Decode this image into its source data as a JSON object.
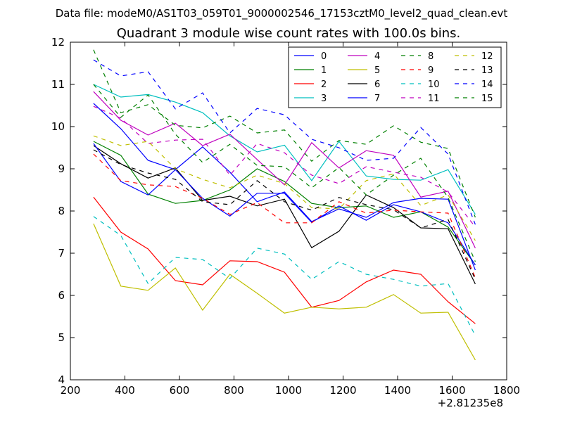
{
  "chart_data": {
    "type": "line",
    "suptitle": "Data file: modeM0/AS1T03_059T01_9000002546_17153cztM0_level2_quad_clean.evt",
    "title": "Quadrant 3 module wise count rates with 100.0s bins.",
    "xlabel": "",
    "ylabel": "",
    "x_offset_label": "+2.81235e8",
    "xlim": [
      200,
      1800
    ],
    "ylim": [
      4,
      12
    ],
    "xticks": [
      200,
      400,
      600,
      800,
      1000,
      1200,
      1400,
      1600,
      1800
    ],
    "yticks": [
      4,
      5,
      6,
      7,
      8,
      9,
      10,
      11,
      12
    ],
    "legend_position": "top-right",
    "legend_columns": 4,
    "x": [
      285,
      385,
      485,
      585,
      685,
      785,
      885,
      985,
      1085,
      1185,
      1285,
      1385,
      1485,
      1585,
      1685
    ],
    "series": [
      {
        "name": "0",
        "color": "#0000ff",
        "dash": "solid",
        "values": [
          10.55,
          9.95,
          9.2,
          8.98,
          9.52,
          8.92,
          8.22,
          8.45,
          7.75,
          8.05,
          7.85,
          8.2,
          8.3,
          8.28,
          6.6
        ]
      },
      {
        "name": "1",
        "color": "#008000",
        "dash": "solid",
        "values": [
          9.65,
          9.32,
          8.4,
          8.18,
          8.25,
          8.5,
          9.0,
          8.7,
          8.18,
          8.08,
          8.12,
          7.85,
          7.98,
          7.62,
          6.72
        ]
      },
      {
        "name": "2",
        "color": "#ff0000",
        "dash": "solid",
        "values": [
          8.33,
          7.5,
          7.1,
          6.35,
          6.25,
          6.82,
          6.8,
          6.55,
          5.72,
          5.88,
          6.32,
          6.6,
          6.5,
          5.85,
          5.33
        ]
      },
      {
        "name": "3",
        "color": "#00bfbf",
        "dash": "solid",
        "values": [
          11.0,
          10.7,
          10.76,
          10.58,
          10.33,
          9.78,
          9.4,
          9.56,
          8.72,
          9.65,
          8.83,
          8.75,
          8.73,
          8.98,
          7.92
        ]
      },
      {
        "name": "4",
        "color": "#bf00bf",
        "dash": "solid",
        "values": [
          10.83,
          10.15,
          9.8,
          10.08,
          9.55,
          9.82,
          9.22,
          8.62,
          9.62,
          9.02,
          9.43,
          9.32,
          8.33,
          8.47,
          7.12
        ]
      },
      {
        "name": "5",
        "color": "#bfbf00",
        "dash": "solid",
        "values": [
          7.7,
          6.22,
          6.12,
          6.65,
          5.65,
          6.5,
          6.05,
          5.58,
          5.72,
          5.68,
          5.72,
          6.02,
          5.58,
          5.6,
          4.47
        ]
      },
      {
        "name": "6",
        "color": "#000000",
        "dash": "solid",
        "values": [
          9.55,
          9.12,
          8.78,
          9.02,
          8.25,
          8.35,
          8.12,
          8.28,
          7.13,
          7.52,
          8.38,
          8.08,
          7.6,
          7.58,
          6.27
        ]
      },
      {
        "name": "7",
        "color": "#0000ff",
        "dash": "solid",
        "values": [
          9.6,
          8.7,
          8.38,
          8.98,
          8.3,
          7.88,
          8.42,
          8.42,
          7.73,
          8.12,
          7.78,
          8.15,
          7.98,
          7.72,
          6.72
        ]
      },
      {
        "name": "8",
        "color": "#008000",
        "dash": "dashed",
        "values": [
          11.82,
          10.33,
          10.52,
          10.03,
          9.97,
          10.25,
          9.85,
          9.92,
          9.18,
          9.67,
          9.58,
          10.02,
          9.63,
          9.48,
          7.85
        ]
      },
      {
        "name": "9",
        "color": "#ff0000",
        "dash": "dashed",
        "values": [
          9.35,
          8.72,
          8.62,
          8.58,
          8.3,
          7.92,
          8.2,
          7.72,
          7.72,
          8.22,
          7.95,
          8.02,
          7.98,
          7.95,
          6.42
        ]
      },
      {
        "name": "10",
        "color": "#00bfbf",
        "dash": "dashed",
        "values": [
          7.87,
          7.42,
          6.28,
          6.9,
          6.85,
          6.4,
          7.12,
          6.98,
          6.38,
          6.8,
          6.5,
          6.38,
          6.22,
          6.28,
          5.05
        ]
      },
      {
        "name": "11",
        "color": "#bf00bf",
        "dash": "dashed",
        "values": [
          10.48,
          10.2,
          9.6,
          9.68,
          9.7,
          8.85,
          9.6,
          9.38,
          8.85,
          8.65,
          9.05,
          8.92,
          8.8,
          8.45,
          7.62
        ]
      },
      {
        "name": "12",
        "color": "#bfbf00",
        "dash": "dashed",
        "values": [
          9.78,
          9.55,
          9.65,
          9.0,
          8.75,
          8.55,
          8.85,
          8.65,
          8.08,
          8.05,
          8.72,
          8.88,
          8.13,
          8.38,
          7.3
        ]
      },
      {
        "name": "13",
        "color": "#000000",
        "dash": "dashed",
        "values": [
          9.45,
          9.1,
          8.9,
          8.75,
          8.22,
          8.15,
          8.72,
          8.22,
          8.02,
          8.32,
          8.15,
          8.03,
          7.6,
          7.8,
          6.38
        ]
      },
      {
        "name": "14",
        "color": "#0000ff",
        "dash": "dashed",
        "values": [
          11.58,
          11.2,
          11.3,
          10.42,
          10.8,
          9.85,
          10.43,
          10.28,
          9.7,
          9.5,
          9.2,
          9.25,
          9.98,
          9.35,
          7.68
        ]
      },
      {
        "name": "15",
        "color": "#008000",
        "dash": "dashed",
        "values": [
          11.0,
          10.22,
          10.75,
          9.82,
          9.15,
          9.58,
          9.08,
          9.05,
          8.55,
          9.03,
          8.38,
          8.85,
          9.25,
          8.32,
          6.8
        ]
      }
    ]
  }
}
